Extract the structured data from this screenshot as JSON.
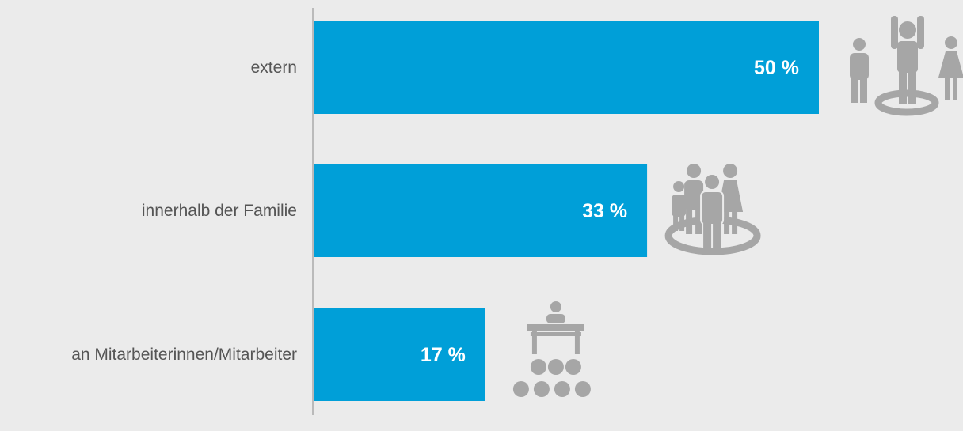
{
  "chart_data": {
    "type": "bar",
    "orientation": "horizontal",
    "categories": [
      "extern",
      "innerhalb der Familie",
      "an Mitarbeiterinnen/Mitarbeiter"
    ],
    "values": [
      50,
      33,
      17
    ],
    "value_labels": [
      "50 %",
      "33 %",
      "17 %"
    ],
    "xlim": [
      0,
      50
    ],
    "grid": false,
    "title": "",
    "xlabel": "",
    "ylabel": "",
    "colors": {
      "bar": "#009fd8",
      "icon": "#a6a6a6",
      "label": "#555555",
      "value_label": "#ffffff",
      "axis": "#888888",
      "background": "#ebebeb"
    },
    "icons": [
      "group-with-raised-arms-icon",
      "family-group-icon",
      "lectern-audience-icon"
    ]
  }
}
